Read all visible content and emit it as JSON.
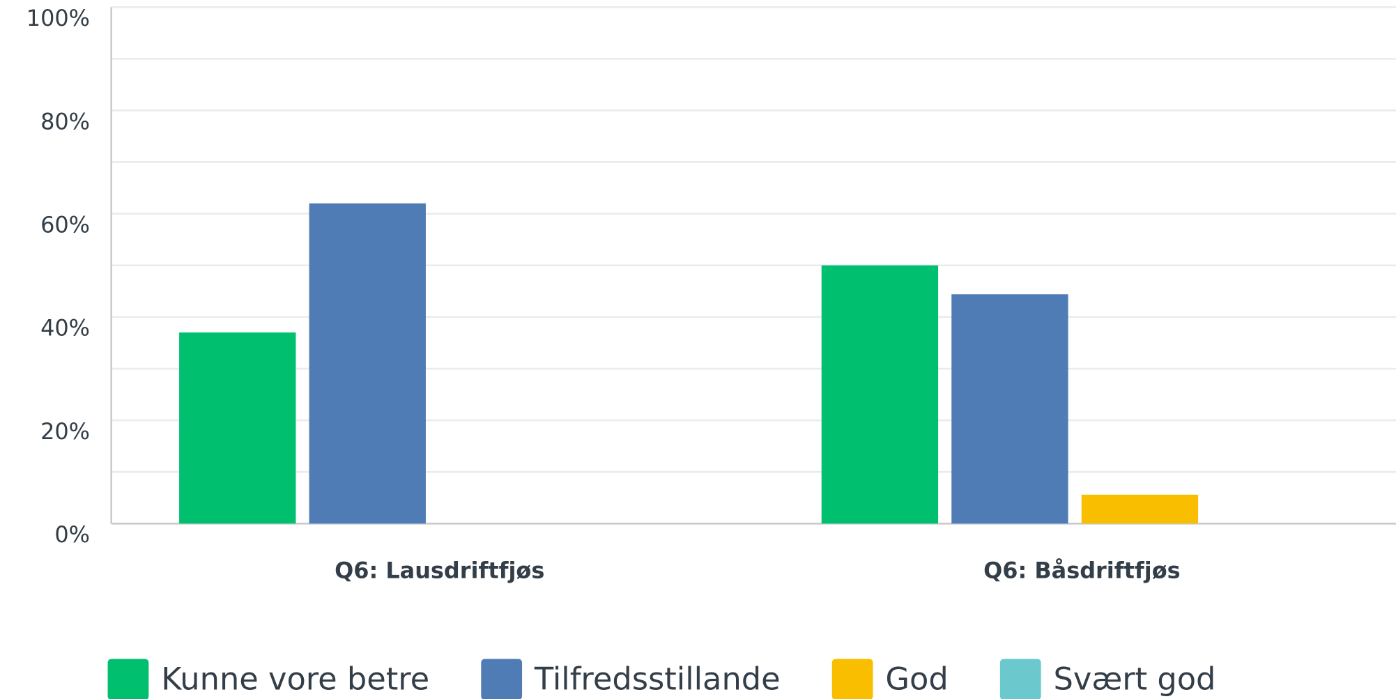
{
  "chart_data": {
    "type": "bar",
    "categories": [
      "Q6: Lausdriftfjøs",
      "Q6: Båsdriftfjøs"
    ],
    "series": [
      {
        "name": "Kunne vore betre",
        "color": "#00bf6f",
        "values": [
          37,
          50
        ]
      },
      {
        "name": "Tilfredsstillande",
        "color": "#507cb6",
        "values": [
          62,
          44.4
        ]
      },
      {
        "name": "God",
        "color": "#f9be00",
        "values": [
          0,
          5.6
        ]
      },
      {
        "name": "Svært god",
        "color": "#6bc8cd",
        "values": [
          0,
          0
        ]
      }
    ],
    "ylim": [
      0,
      100
    ],
    "yticks": [
      {
        "value": 0,
        "label": "0%"
      },
      {
        "value": 20,
        "label": "20%"
      },
      {
        "value": 40,
        "label": "40%"
      },
      {
        "value": 60,
        "label": "60%"
      },
      {
        "value": 80,
        "label": "80%"
      },
      {
        "value": 100,
        "label": "100%"
      }
    ],
    "minor_yticks": [
      10,
      30,
      50,
      70,
      90
    ],
    "grid": true,
    "legend": "bottom"
  }
}
